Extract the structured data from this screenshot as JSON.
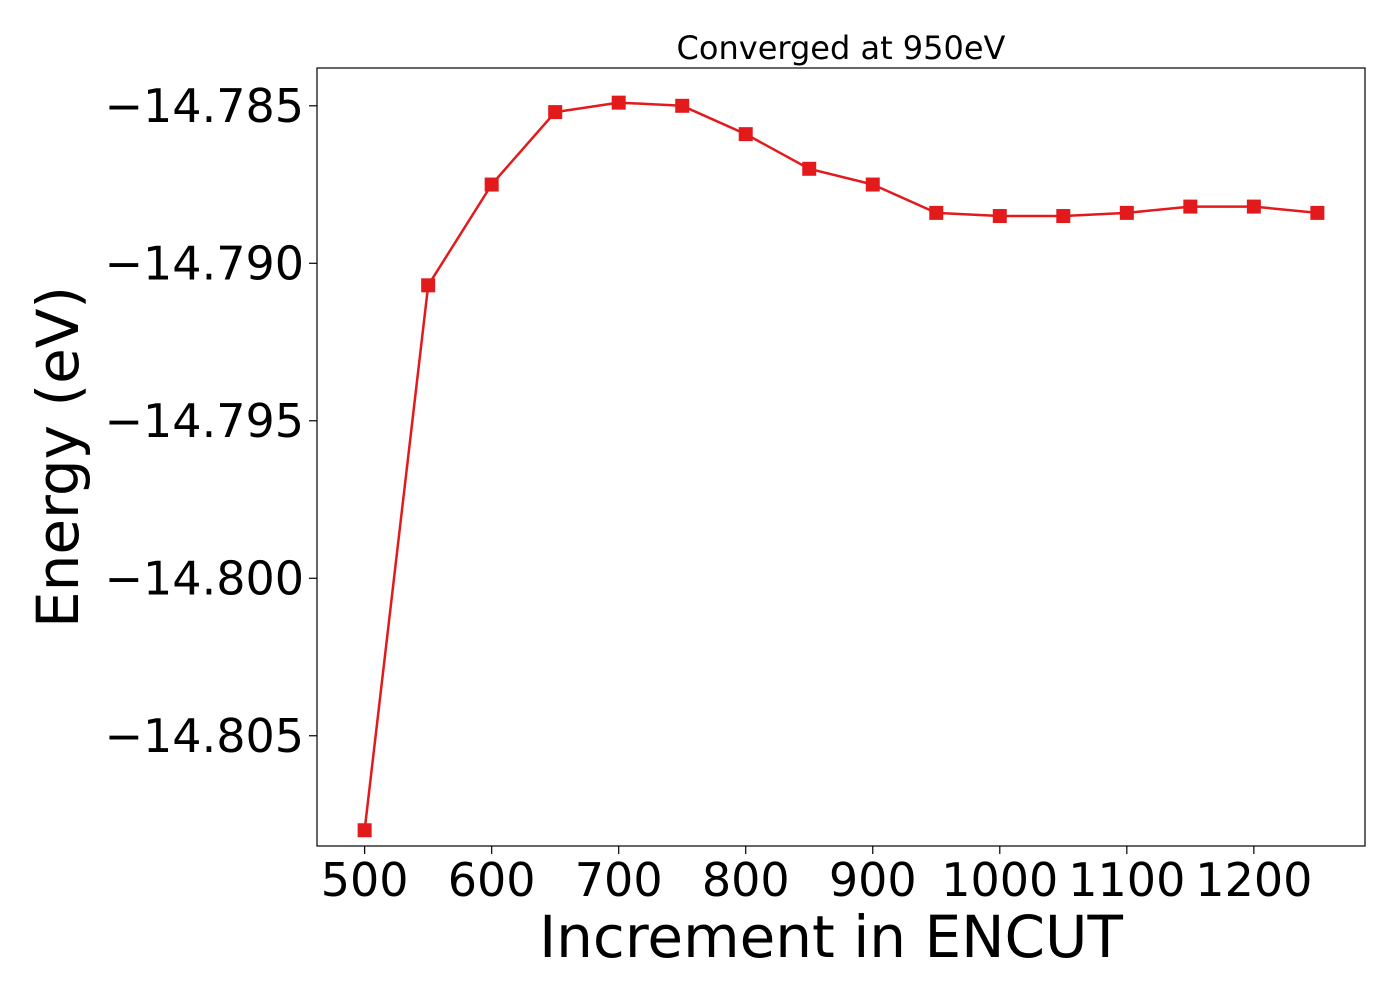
{
  "chart_data": {
    "type": "line",
    "title": "Converged at 950eV",
    "xlabel": "Increment in ENCUT",
    "ylabel": "Energy (eV)",
    "xlim": [
      462.5,
      1287.5
    ],
    "ylim": [
      -14.8085,
      -14.7838
    ],
    "x_ticks": [
      500,
      600,
      700,
      800,
      900,
      1000,
      1100,
      1200
    ],
    "x_tick_labels": [
      "500",
      "600",
      "700",
      "800",
      "900",
      "1000",
      "1100",
      "1200"
    ],
    "y_ticks": [
      -14.785,
      -14.79,
      -14.795,
      -14.8,
      -14.805
    ],
    "y_tick_labels": [
      "−14.785",
      "−14.790",
      "−14.795",
      "−14.800",
      "−14.805"
    ],
    "grid": false,
    "series": [
      {
        "color": "#e31a1c",
        "marker": "square",
        "x": [
          500,
          550,
          600,
          650,
          700,
          750,
          800,
          850,
          900,
          950,
          1000,
          1050,
          1100,
          1150,
          1200,
          1250
        ],
        "y": [
          -14.808,
          -14.7907,
          -14.7875,
          -14.7852,
          -14.7849,
          -14.785,
          -14.7859,
          -14.787,
          -14.7875,
          -14.7884,
          -14.7885,
          -14.7885,
          -14.7884,
          -14.7882,
          -14.7882,
          -14.7884
        ]
      }
    ]
  }
}
